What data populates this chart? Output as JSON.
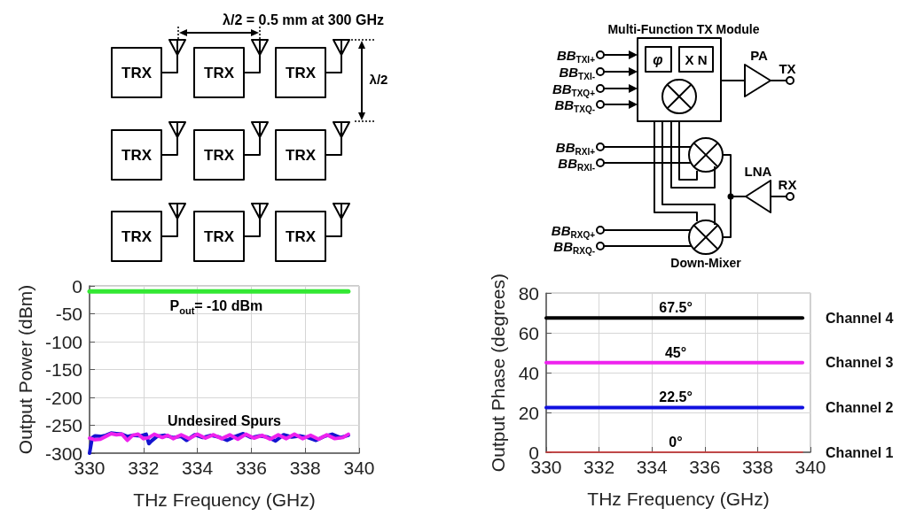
{
  "chart_data": [
    {
      "type": "other",
      "annotations": [
        "λ/2 = 0.5 mm at 300 GHz",
        "TRX",
        "TRX",
        "TRX",
        "TRX",
        "TRX",
        "TRX",
        "TRX",
        "TRX",
        "TRX",
        "λ/2"
      ]
    },
    {
      "type": "other",
      "title": "Multi-Function TX Module",
      "annotations": [
        "φ",
        "X N",
        "BB$_{TXI+}$",
        "BB$_{TXI-}$",
        "BB$_{TXQ+}$",
        "BB$_{TXQ-}$",
        "PA",
        "TX",
        "BB$_{RXI+}$",
        "BB$_{RXI-}$",
        "LNA",
        "RX",
        "BB$_{RXQ+}$",
        "BB$_{RXQ-}$",
        "Down-Mixer"
      ]
    },
    {
      "type": "line",
      "xlabel": "THz Frequency (GHz)",
      "ylabel": "Output Power (dBm)",
      "xlim": [
        330,
        340
      ],
      "xticks": [
        330,
        332,
        334,
        336,
        338,
        340
      ],
      "ylim": [
        -300,
        0
      ],
      "yticks": [
        -300,
        -250,
        -200,
        -150,
        -100,
        -50,
        0
      ],
      "grid": true,
      "series": [
        {
          "color": "#33e833",
          "x": [
            330,
            339.6
          ],
          "values": [
            -10,
            -10
          ]
        },
        {
          "color": "#1414d0",
          "x": [
            330,
            330.1,
            330.2,
            330.4,
            330.6,
            330.8,
            331,
            331.2,
            331.4,
            331.6,
            331.9,
            332.1,
            332.2,
            332.3,
            332.5,
            332.8,
            333.1,
            333.4,
            333.6,
            333.9,
            334.2,
            334.5,
            334.8,
            335.1,
            335.4,
            335.7,
            336,
            336.3,
            336.6,
            336.9,
            337.2,
            337.5,
            337.8,
            338.1,
            338.4,
            338.7,
            339,
            339.3,
            339.6
          ],
          "values": [
            -300,
            -272,
            -269,
            -270,
            -268,
            -264,
            -265,
            -266,
            -270,
            -268,
            -269,
            -266,
            -283,
            -278,
            -270,
            -268,
            -272,
            -270,
            -277,
            -267,
            -272,
            -268,
            -271,
            -277,
            -270,
            -265,
            -272,
            -269,
            -271,
            -278,
            -267,
            -271,
            -269,
            -272,
            -277,
            -270,
            -266,
            -272,
            -268
          ]
        },
        {
          "color": "#ee22ee",
          "x": [
            330,
            330.2,
            330.4,
            330.6,
            330.8,
            331,
            331.2,
            331.4,
            331.6,
            331.8,
            332,
            332.2,
            332.4,
            332.7,
            332.9,
            333.1,
            333.4,
            333.7,
            334,
            334.3,
            334.6,
            334.9,
            335.2,
            335.5,
            335.8,
            336.1,
            336.4,
            336.7,
            337,
            337.3,
            337.6,
            337.9,
            338.2,
            338.5,
            338.8,
            339.1,
            339.4,
            339.6
          ],
          "values": [
            -273,
            -276,
            -275,
            -270,
            -265,
            -267,
            -266,
            -277,
            -268,
            -266,
            -274,
            -272,
            -266,
            -272,
            -268,
            -274,
            -267,
            -274,
            -266,
            -273,
            -267,
            -274,
            -267,
            -275,
            -266,
            -273,
            -268,
            -275,
            -267,
            -274,
            -266,
            -274,
            -268,
            -275,
            -267,
            -274,
            -272,
            -266
          ]
        }
      ],
      "annotations": [
        {
          "text": "P$_{out}$= -10 dBm",
          "x": 334.7,
          "y": -10
        },
        {
          "text": "Undesired Spurs",
          "x": 335,
          "y": -270
        }
      ]
    },
    {
      "type": "line",
      "xlabel": "THz Frequency (GHz)",
      "ylabel": "Output Phase (degrees)",
      "xlim": [
        330,
        340
      ],
      "xticks": [
        330,
        332,
        334,
        336,
        338,
        340
      ],
      "ylim": [
        0,
        80
      ],
      "yticks": [
        0,
        20,
        40,
        60,
        80
      ],
      "grid": true,
      "series": [
        {
          "name": "Channel 4",
          "color": "#000000",
          "x": [
            330,
            339.7
          ],
          "values": [
            67.5,
            67.5
          ]
        },
        {
          "name": "Channel 3",
          "color": "#ee22ee",
          "x": [
            330,
            339.7
          ],
          "values": [
            45,
            45
          ]
        },
        {
          "name": "Channel 2",
          "color": "#1010e0",
          "x": [
            330,
            339.7
          ],
          "values": [
            22.5,
            22.5
          ]
        },
        {
          "name": "Channel 1",
          "color": "#e83030",
          "x": [
            330,
            339.7
          ],
          "values": [
            0,
            0
          ]
        }
      ],
      "annotations": [
        {
          "text": "67.5°",
          "x": 334.9,
          "y": 67.5
        },
        {
          "text": "45°",
          "x": 334.9,
          "y": 45
        },
        {
          "text": "22.5°",
          "x": 334.9,
          "y": 22.5
        },
        {
          "text": "0°",
          "x": 334.9,
          "y": 0
        }
      ]
    }
  ]
}
